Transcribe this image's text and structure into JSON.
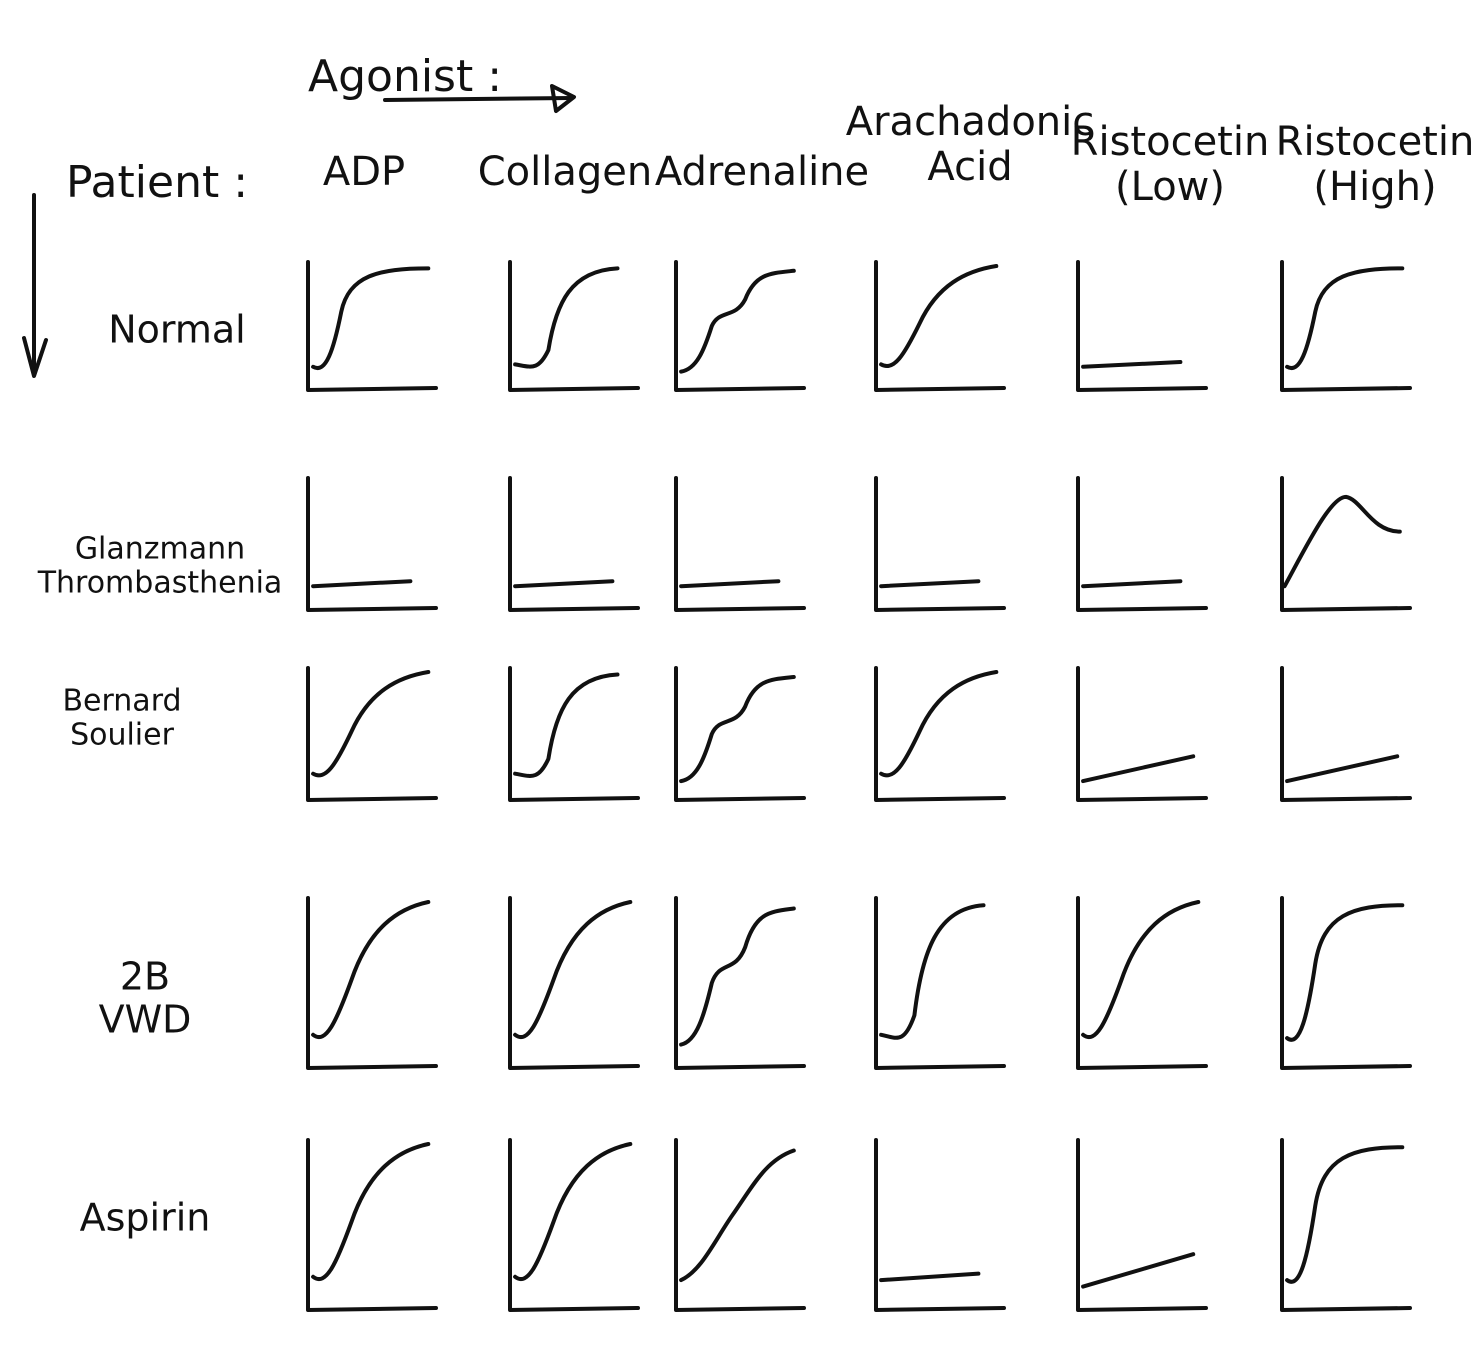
{
  "header": {
    "agonist_label": "Agonist :",
    "patient_label": "Patient :"
  },
  "agonists": [
    "ADP",
    "Collagen",
    "Adrenaline",
    "Arachadonic\nAcid",
    "Ristocetin\n(Low)",
    "Ristocetin\n(High)"
  ],
  "patients": [
    "Normal",
    "Glanzmann\nThrombasthenia",
    "Bernard\nSoulier",
    "2B\nVWD",
    "Aspirin"
  ],
  "responses": [
    [
      "sigmoid-fast",
      "sigmoid-lag",
      "biphasic",
      "gradual-rise",
      "flat",
      "sigmoid-fast"
    ],
    [
      "flat",
      "flat",
      "flat",
      "flat",
      "flat",
      "peak-decline"
    ],
    [
      "gradual-rise",
      "sigmoid-lag",
      "biphasic",
      "gradual-rise",
      "slow-linear",
      "slow-linear"
    ],
    [
      "gradual-rise",
      "gradual-rise",
      "biphasic",
      "sigmoid-lag",
      "gradual-rise",
      "sigmoid-fast"
    ],
    [
      "gradual-rise",
      "gradual-rise",
      "slow-linear-rise",
      "flat",
      "slow-linear",
      "sigmoid-fast"
    ]
  ]
}
